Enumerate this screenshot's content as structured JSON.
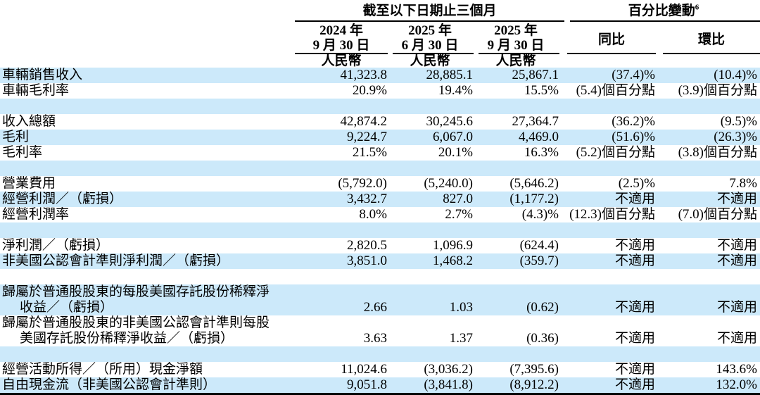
{
  "colors": {
    "stripe_blue": "#cce9fa",
    "text": "#000000",
    "rule": "#000000"
  },
  "header": {
    "period_group": "截至以下日期止三個月",
    "change_group": "百分比變動",
    "change_group_sup": "6",
    "date_cols": [
      {
        "year": "2024 年",
        "date": "9 月 30 日",
        "currency": "人民幣"
      },
      {
        "year": "2025 年",
        "date": "6 月 30 日",
        "currency": "人民幣"
      },
      {
        "year": "2025 年",
        "date": "9 月 30 日",
        "currency": "人民幣"
      }
    ],
    "yoy_label": "同比",
    "qoq_label": "環比"
  },
  "rows": [
    {
      "label_lines": [
        "車輛銷售收入"
      ],
      "values": [
        "41,323.8",
        "28,885.1",
        "25,867.1",
        "(37.4)%",
        "(10.4)%"
      ],
      "shaded": true
    },
    {
      "label_lines": [
        "車輛毛利率"
      ],
      "values": [
        "20.9%",
        "19.4%",
        "15.5%",
        "(5.4)個百分點",
        "(3.9)個百分點"
      ],
      "shaded": false
    },
    {
      "blank": true,
      "shaded": true
    },
    {
      "label_lines": [
        "收入總額"
      ],
      "values": [
        "42,874.2",
        "30,245.6",
        "27,364.7",
        "(36.2)%",
        "(9.5)%"
      ],
      "shaded": false
    },
    {
      "label_lines": [
        "毛利"
      ],
      "values": [
        "9,224.7",
        "6,067.0",
        "4,469.0",
        "(51.6)%",
        "(26.3)%"
      ],
      "shaded": true
    },
    {
      "label_lines": [
        "毛利率"
      ],
      "values": [
        "21.5%",
        "20.1%",
        "16.3%",
        "(5.2)個百分點",
        "(3.8)個百分點"
      ],
      "shaded": false
    },
    {
      "blank": true,
      "shaded": true
    },
    {
      "label_lines": [
        "營業費用"
      ],
      "values": [
        "(5,792.0)",
        "(5,240.0)",
        "(5,646.2)",
        "(2.5)%",
        "7.8%"
      ],
      "shaded": false
    },
    {
      "label_lines": [
        "經營利潤／（虧損）"
      ],
      "values": [
        "3,432.7",
        "827.0",
        "(1,177.2)",
        "不適用",
        "不適用"
      ],
      "shaded": true
    },
    {
      "label_lines": [
        "經營利潤率"
      ],
      "values": [
        "8.0%",
        "2.7%",
        "(4.3)%",
        "(12.3)個百分點",
        "(7.0)個百分點"
      ],
      "shaded": false
    },
    {
      "blank": true,
      "shaded": true
    },
    {
      "label_lines": [
        "淨利潤／（虧損）"
      ],
      "values": [
        "2,820.5",
        "1,096.9",
        "(624.4)",
        "不適用",
        "不適用"
      ],
      "shaded": false
    },
    {
      "label_lines": [
        "非美國公認會計準則淨利潤／（虧損）"
      ],
      "values": [
        "3,851.0",
        "1,468.2",
        "(359.7)",
        "不適用",
        "不適用"
      ],
      "shaded": true
    },
    {
      "blank": true,
      "shaded": false
    },
    {
      "label_lines": [
        "歸屬於普通股股東的每股美國存託股份稀釋淨",
        "收益／（虧損）"
      ],
      "values": [
        "2.66",
        "1.03",
        "(0.62)",
        "不適用",
        "不適用"
      ],
      "shaded": true
    },
    {
      "label_lines": [
        "歸屬於普通股股東的非美國公認會計準則每股",
        "美國存託股份稀釋淨收益／（虧損）"
      ],
      "values": [
        "3.63",
        "1.37",
        "(0.36)",
        "不適用",
        "不適用"
      ],
      "shaded": false
    },
    {
      "blank": true,
      "shaded": true
    },
    {
      "label_lines": [
        "經營活動所得／（所用）現金淨額"
      ],
      "values": [
        "11,024.6",
        "(3,036.2)",
        "(7,395.6)",
        "不適用",
        "143.6%"
      ],
      "shaded": false
    },
    {
      "label_lines": [
        "自由現金流（非美國公認會計準則）"
      ],
      "values": [
        "9,051.8",
        "(3,841.8)",
        "(8,912.2)",
        "不適用",
        "132.0%"
      ],
      "shaded": true
    }
  ]
}
